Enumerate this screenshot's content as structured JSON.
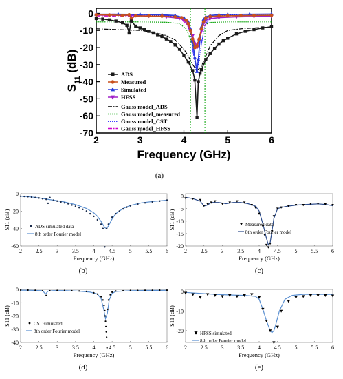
{
  "chart_data": [
    {
      "id": "a",
      "type": "line",
      "panel_label": "(a)",
      "xlabel": "Frequency (GHz)",
      "ylabel_main": "S",
      "ylabel_sub": "11",
      "ylabel_unit": " (dB)",
      "xlim": [
        2,
        6
      ],
      "ylim": [
        -70,
        3
      ],
      "xticks": [
        "2",
        "3",
        "4",
        "5",
        "6"
      ],
      "yticks": [
        "0",
        "-10",
        "-20",
        "-30",
        "-40",
        "-50",
        "-60",
        "-70"
      ],
      "vlines": [
        4.15,
        4.48
      ],
      "colors": {
        "ads": "#1a1a1a",
        "measured": "#c8501e",
        "simulated": "#2a3cdc",
        "hfss": "#a020c8",
        "gads": "#000000",
        "gmeas": "#00a000",
        "gcst": "#0000ff",
        "ghfss": "#cc00cc"
      },
      "legend_top": [
        "ADS",
        "Measured",
        "Simulated",
        "HFSS"
      ],
      "legend_bottom": [
        "Gauss model_ADS",
        "Gauss model_measured",
        "Gauss model_CST",
        "Gauss model_HFSS"
      ],
      "series": [
        {
          "name": "ADS",
          "x": [
            2.0,
            2.15,
            2.3,
            2.45,
            2.6,
            2.7,
            2.75,
            2.8,
            2.9,
            3.0,
            3.1,
            3.2,
            3.3,
            3.4,
            3.5,
            3.6,
            3.7,
            3.8,
            3.9,
            4.0,
            4.1,
            4.2,
            4.25,
            4.3,
            4.33,
            4.37,
            4.4,
            4.5,
            4.6,
            4.7,
            4.8,
            4.9,
            5.0,
            5.2,
            5.4,
            5.6,
            5.8,
            6.0
          ],
          "y": [
            -3,
            -3.3,
            -3.8,
            -4.5,
            -5.5,
            -7,
            -11.5,
            -4.5,
            -7.5,
            -8.5,
            -9.5,
            -10.5,
            -11.5,
            -12.5,
            -13.5,
            -15,
            -16.5,
            -18.5,
            -21,
            -24.5,
            -28.5,
            -33.5,
            -39,
            -61,
            -40,
            -35,
            -33,
            -27,
            -23.5,
            -20.5,
            -18,
            -16,
            -14.5,
            -12,
            -10.5,
            -9.5,
            -8.5,
            -7.8
          ]
        },
        {
          "name": "Measured",
          "x": [
            2.0,
            2.3,
            2.6,
            2.75,
            2.8,
            2.9,
            3.2,
            3.5,
            3.8,
            3.95,
            4.05,
            4.1,
            4.15,
            4.2,
            4.25,
            4.3,
            4.35,
            4.4,
            4.45,
            4.5,
            4.6,
            4.8,
            5.0,
            5.3,
            5.6,
            6.0
          ],
          "y": [
            -0.8,
            -0.9,
            -1.2,
            -0.8,
            -3,
            -1.4,
            -1.5,
            -1.6,
            -2,
            -2.5,
            -4,
            -6,
            -10,
            -15,
            -20,
            -19,
            -15,
            -9,
            -5,
            -2.5,
            -1.8,
            -1.5,
            -1.4,
            -1.3,
            -1.2,
            -1.1
          ]
        },
        {
          "name": "Simulated",
          "x": [
            2.0,
            2.5,
            3.0,
            3.5,
            3.8,
            4.0,
            4.1,
            4.15,
            4.2,
            4.25,
            4.3,
            4.33,
            4.37,
            4.4,
            4.45,
            4.5,
            4.6,
            4.8,
            5.0,
            5.5,
            6.0
          ],
          "y": [
            -0.5,
            -0.5,
            -0.6,
            -0.8,
            -1.2,
            -2.5,
            -5,
            -9,
            -16,
            -26,
            -34,
            -27,
            -15,
            -8,
            -3.5,
            -2,
            -1.2,
            -0.8,
            -0.6,
            -0.5,
            -0.4
          ]
        },
        {
          "name": "HFSS",
          "x": [
            2.0,
            2.4,
            2.8,
            3.2,
            3.6,
            3.9,
            4.0,
            4.1,
            4.2,
            4.25,
            4.3,
            4.35,
            4.4,
            4.45,
            4.5,
            4.6,
            4.8,
            5.2,
            5.6,
            6.0
          ],
          "y": [
            -1,
            -1,
            -1.2,
            -1.5,
            -2,
            -2.8,
            -4,
            -7,
            -13,
            -18,
            -20,
            -16,
            -10,
            -6,
            -4,
            -3,
            -2.5,
            -2,
            -1.8,
            -1.6
          ]
        }
      ],
      "gauss": [
        {
          "name": "Gauss model_ADS",
          "x": [
            2.0,
            2.5,
            3.0,
            3.3,
            3.6,
            3.8,
            4.0,
            4.1,
            4.2,
            4.3,
            4.4,
            4.5,
            4.6,
            4.8,
            5.0,
            5.3,
            5.6,
            6.0
          ],
          "y": [
            -9,
            -9.5,
            -10,
            -11,
            -13,
            -15.5,
            -21,
            -25,
            -30,
            -33.5,
            -31,
            -25,
            -19,
            -13,
            -10,
            -9,
            -8.5,
            -8
          ]
        },
        {
          "name": "Gauss model_measured",
          "x": [
            2.0,
            3.0,
            3.6,
            3.9,
            4.05,
            4.15,
            4.22,
            4.28,
            4.35,
            4.45,
            4.6,
            5.0,
            6.0
          ],
          "y": [
            -5,
            -5,
            -5.2,
            -6,
            -9,
            -15,
            -20,
            -19,
            -13,
            -7,
            -5.3,
            -5,
            -5
          ]
        },
        {
          "name": "Gauss model_CST",
          "x": [
            2.0,
            3.0,
            3.8,
            4.05,
            4.15,
            4.22,
            4.28,
            4.33,
            4.4,
            4.48,
            4.6,
            5.0,
            6.0
          ],
          "y": [
            -1,
            -1,
            -1.5,
            -4,
            -12,
            -24,
            -33,
            -30,
            -18,
            -7,
            -2,
            -1,
            -1
          ]
        },
        {
          "name": "Gauss model_HFSS",
          "x": [
            2.0,
            3.0,
            3.7,
            3.95,
            4.1,
            4.2,
            4.28,
            4.35,
            4.45,
            4.6,
            5.0,
            6.0
          ],
          "y": [
            -1.5,
            -1.6,
            -2,
            -3.5,
            -8,
            -14,
            -18,
            -15,
            -8,
            -3,
            -2,
            -1.8
          ]
        }
      ]
    },
    {
      "id": "b",
      "type": "line",
      "panel_label": "(b)",
      "xlabel": "Frequency (GHz)",
      "ylabel": "S11 (dB)",
      "xlim": [
        2,
        6
      ],
      "ylim": [
        -60,
        0
      ],
      "xticks": [
        "2",
        "2.5",
        "3",
        "3.5",
        "4",
        "4.5",
        "5",
        "5.5",
        "6"
      ],
      "yticks": [
        "0",
        "-20",
        "-40",
        "-60"
      ],
      "legend": [
        "ADS simulated data",
        "8th order Fourier model"
      ],
      "points": {
        "x": [
          2.0,
          2.1,
          2.2,
          2.3,
          2.4,
          2.5,
          2.6,
          2.7,
          2.75,
          2.8,
          2.9,
          3.0,
          3.1,
          3.2,
          3.3,
          3.4,
          3.5,
          3.6,
          3.7,
          3.8,
          3.9,
          4.0,
          4.1,
          4.2,
          4.25,
          4.3,
          4.35,
          4.4,
          4.5,
          4.6,
          4.7,
          4.8,
          4.9,
          5.0,
          5.2,
          5.4,
          5.6,
          5.8,
          6.0
        ],
        "y": [
          -3,
          -3.2,
          -3.5,
          -4,
          -4.5,
          -5,
          -5.8,
          -6.5,
          -11,
          -4.5,
          -7.5,
          -8.5,
          -9.5,
          -10.5,
          -11.5,
          -13,
          -14.5,
          -16,
          -18,
          -20,
          -23,
          -26,
          -30,
          -35,
          -40,
          -61,
          -40,
          -35,
          -27,
          -23,
          -20,
          -17.5,
          -15.5,
          -14,
          -12,
          -10.5,
          -9.5,
          -8.5,
          -7.5
        ]
      },
      "fit": {
        "x": [
          2.0,
          2.3,
          2.6,
          2.9,
          3.2,
          3.5,
          3.8,
          4.0,
          4.1,
          4.2,
          4.3,
          4.35,
          4.4,
          4.5,
          4.6,
          4.8,
          5.0,
          5.3,
          5.6,
          6.0
        ],
        "y": [
          -3,
          -3.8,
          -5.5,
          -7.5,
          -9.5,
          -12.5,
          -17,
          -22,
          -26,
          -32,
          -39,
          -40,
          -37,
          -29,
          -23,
          -17,
          -13.5,
          -10.5,
          -9,
          -7.5
        ]
      }
    },
    {
      "id": "c",
      "type": "line",
      "panel_label": "(c)",
      "xlabel": "Frequency (GHz)",
      "ylabel": "S11 (dB)",
      "xlim": [
        2,
        6
      ],
      "ylim": [
        -20,
        1
      ],
      "xticks": [
        "2",
        "2.5",
        "3",
        "3.5",
        "4",
        "4.5",
        "5",
        "5.5",
        "6"
      ],
      "yticks": [
        "0",
        "-5",
        "-10",
        "-15",
        "-20"
      ],
      "legend": [
        "Measured data",
        "8th order Fourier model"
      ],
      "points": {
        "x": [
          2.0,
          2.2,
          2.4,
          2.5,
          2.6,
          2.7,
          2.8,
          3.0,
          3.2,
          3.4,
          3.6,
          3.8,
          3.9,
          4.0,
          4.1,
          4.15,
          4.2,
          4.25,
          4.3,
          4.35,
          4.4,
          4.5,
          4.6,
          4.8,
          5.0,
          5.2,
          5.4,
          5.6,
          5.8,
          6.0
        ],
        "y": [
          -0.8,
          -1,
          -1.5,
          -3.8,
          -3.2,
          -2.5,
          -2,
          -3,
          -2.5,
          -2,
          -2.5,
          -3.5,
          -4.5,
          -7,
          -12,
          -15.5,
          -19.5,
          -20.5,
          -19,
          -14,
          -8,
          -5,
          -4.5,
          -4,
          -3.5,
          -3.5,
          -3,
          -3,
          -3.2,
          -3.5
        ]
      },
      "fit": {
        "x": [
          2.0,
          2.2,
          2.4,
          2.5,
          2.6,
          2.7,
          2.9,
          3.1,
          3.3,
          3.5,
          3.7,
          3.9,
          4.0,
          4.1,
          4.2,
          4.25,
          4.3,
          4.35,
          4.4,
          4.5,
          4.7,
          5.0,
          5.3,
          5.6,
          5.8,
          6.0
        ],
        "y": [
          -0.5,
          -1,
          -2,
          -4,
          -3.5,
          -2.5,
          -2.5,
          -3,
          -2.5,
          -2.5,
          -3,
          -4,
          -6,
          -11,
          -17,
          -19.5,
          -18.5,
          -14,
          -9,
          -5,
          -4.2,
          -3.6,
          -3.3,
          -3.1,
          -3.3,
          -3.8
        ]
      }
    },
    {
      "id": "d",
      "type": "line",
      "panel_label": "(d)",
      "xlabel": "Frequency (GHz)",
      "ylabel": "S11 (dB)",
      "xlim": [
        2,
        6
      ],
      "ylim": [
        -40,
        0
      ],
      "xticks": [
        "2",
        "2.5",
        "3",
        "3.5",
        "4",
        "4.5",
        "5",
        "5.5",
        "6"
      ],
      "yticks": [
        "0",
        "-10",
        "-20",
        "-30",
        "-40"
      ],
      "legend": [
        "CST simulated",
        "8th order Fourier model"
      ],
      "points": {
        "x": [
          2.0,
          2.2,
          2.4,
          2.6,
          2.7,
          2.8,
          3.0,
          3.2,
          3.4,
          3.6,
          3.8,
          4.0,
          4.1,
          4.2,
          4.25,
          4.28,
          4.3,
          4.31,
          4.32,
          4.33,
          4.34,
          4.35,
          4.36,
          4.38,
          4.4,
          4.45,
          4.5,
          4.6,
          4.8,
          5.0,
          5.2,
          5.4,
          5.6,
          5.8,
          6.0
        ],
        "y": [
          -0.5,
          -0.5,
          -0.7,
          -1,
          -4.5,
          -1,
          -0.8,
          -0.8,
          -1,
          -1.2,
          -1.5,
          -2.5,
          -3.5,
          -5.5,
          -8,
          -12,
          -16,
          -20,
          -24,
          -28,
          -32,
          -36,
          -44,
          -15,
          -8,
          -4,
          -2,
          -1.2,
          -1,
          -0.8,
          -0.8,
          -0.7,
          -0.7,
          -0.6,
          -0.6
        ]
      },
      "fit": {
        "x": [
          2.0,
          2.3,
          2.6,
          2.68,
          2.75,
          2.9,
          3.2,
          3.6,
          3.9,
          4.1,
          4.2,
          4.27,
          4.32,
          4.37,
          4.42,
          4.5,
          4.6,
          5.0,
          5.4,
          6.0
        ],
        "y": [
          -0.6,
          -0.7,
          -1,
          -3.5,
          -1.3,
          -0.9,
          -0.9,
          -1.3,
          -2,
          -3.5,
          -7,
          -15,
          -22,
          -18,
          -8,
          -3,
          -1.5,
          -1,
          -0.8,
          -0.7
        ]
      }
    },
    {
      "id": "e",
      "type": "line",
      "panel_label": "(e)",
      "xlabel": "Frequency (GHz)",
      "ylabel": "S11 (dB)",
      "xlim": [
        2,
        6
      ],
      "ylim": [
        -26,
        1
      ],
      "xticks": [
        "2",
        "2.5",
        "3",
        "3.5",
        "4",
        "4.5",
        "5",
        "5.5",
        "6"
      ],
      "yticks": [
        "0",
        "-10",
        "-20"
      ],
      "legend": [
        "HFSS simulated",
        "8th order Fourier model"
      ],
      "points": {
        "x": [
          2.0,
          2.2,
          2.4,
          2.6,
          2.8,
          3.0,
          3.2,
          3.4,
          3.6,
          3.8,
          4.0,
          4.1,
          4.2,
          4.3,
          4.4,
          4.5,
          4.6,
          4.8,
          5.0,
          5.2,
          5.4,
          5.6,
          5.8,
          6.0
        ],
        "y": [
          -0.8,
          -1.5,
          -3,
          -1.5,
          -2,
          -2.5,
          -2,
          -2.5,
          -2,
          -1.5,
          -3,
          -9,
          -15,
          -20,
          -26,
          -18,
          -10,
          -5,
          -3,
          -2.5,
          -2,
          -2,
          -2,
          -2.2
        ]
      },
      "fit": {
        "x": [
          2.0,
          2.4,
          2.8,
          3.2,
          3.6,
          3.9,
          4.0,
          4.1,
          4.2,
          4.3,
          4.35,
          4.4,
          4.45,
          4.55,
          4.7,
          4.9,
          5.2,
          5.5,
          6.0
        ],
        "y": [
          -0.5,
          -1,
          -1.5,
          -1.8,
          -2,
          -2.5,
          -4,
          -9,
          -15,
          -20,
          -21,
          -20,
          -17,
          -10,
          -4,
          -2,
          -1.5,
          -1.5,
          -1.5
        ]
      }
    }
  ]
}
